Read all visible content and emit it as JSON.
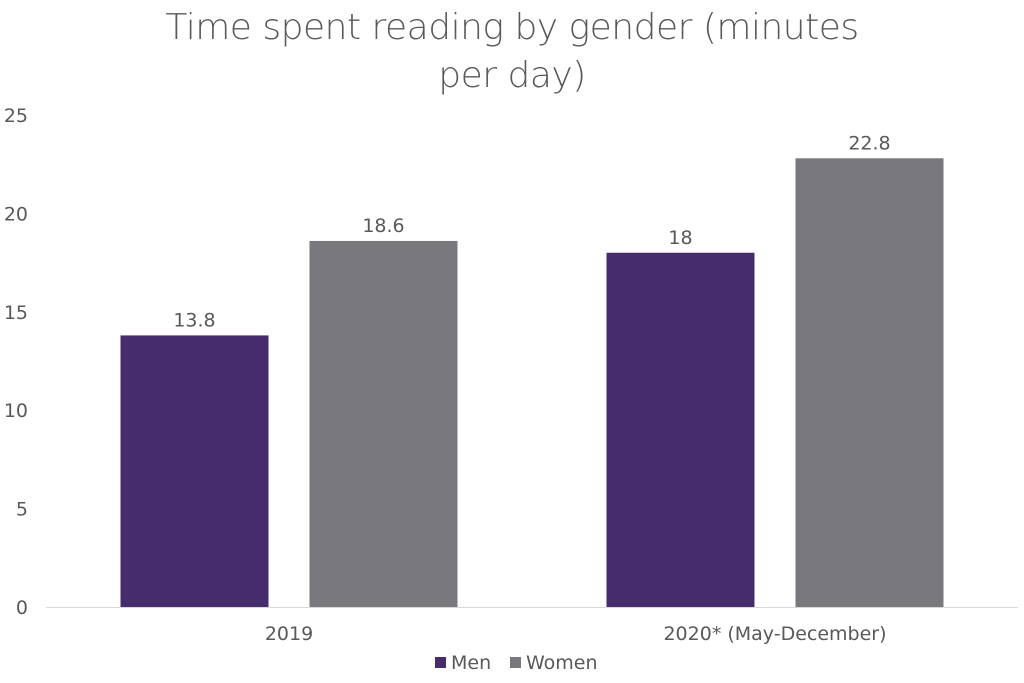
{
  "chart_data": {
    "type": "bar",
    "title": "Time spent reading by gender (minutes per day)",
    "xlabel": "",
    "ylabel": "",
    "categories": [
      "2019",
      "2020* (May-December)"
    ],
    "series": [
      {
        "name": "Men",
        "values": [
          13.8,
          18
        ],
        "labels": [
          "13.8",
          "18"
        ],
        "color": "#472c6b"
      },
      {
        "name": "Women",
        "values": [
          18.6,
          22.8
        ],
        "labels": [
          "18.6",
          "22.8"
        ],
        "color": "#79787c"
      }
    ],
    "ylim": [
      0,
      25
    ],
    "yticks": [
      0,
      5,
      10,
      15,
      20,
      25
    ],
    "grid": false,
    "legend": "bottom"
  }
}
